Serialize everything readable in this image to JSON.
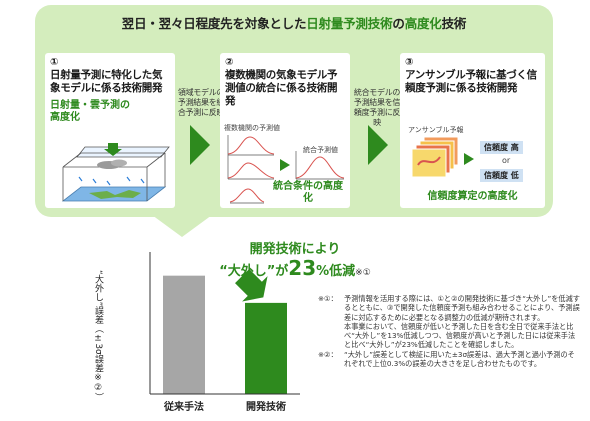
{
  "title": {
    "part1": "翌日・翌々日程度先を対象とした",
    "part2": "日射量予測技術",
    "part3": "の",
    "part4": "高度化",
    "part5": "技術"
  },
  "step1": {
    "num": "①",
    "heading": "日射量予測に特化した気象モデルに係る技術開発",
    "highlight": "日射量・雲予測の高度化"
  },
  "link1": "領域モデルの予測結果を統合予測に反映",
  "step2": {
    "num": "②",
    "heading": "複数機関の気象モデル予測値の統合に係る技術開発",
    "small1": "複数機関の予測値",
    "small2": "統合予測値",
    "highlight": "統合条件の高度化"
  },
  "link2": "統合モデルの予測結果を信頼度予測に反映",
  "step3": {
    "num": "③",
    "heading": "アンサンブル予報に基づく信頼度予測に係る技術開発",
    "small1": "アンサンブル予報",
    "conf_high": "信頼度 高",
    "or": "or",
    "conf_low": "信頼度 低",
    "highlight": "信頼度算定の高度化"
  },
  "result": {
    "line1": "開発技術により",
    "line2_a": "“大外し”が",
    "line2_b": "23",
    "line2_c": "%低減",
    "line2_note": "※①"
  },
  "chart_data": {
    "type": "bar",
    "categories": [
      "従来手法",
      "開発技術"
    ],
    "values": [
      100,
      77
    ],
    "ylabel": "“大外し”誤差（±3σ誤差※②）",
    "colors": [
      "#a6a6a6",
      "#2e8a1e"
    ],
    "ylim": [
      0,
      120
    ]
  },
  "notes": [
    {
      "key": "※①：",
      "text": "予測情報を活用する際には、①と②の開発技術に基づき“大外し”を低減するとともに、③で開発した信頼度予測も組み合わせることにより、予測誤差に対応するために必要となる調整力の低減が期待されます。"
    },
    {
      "key": "",
      "text": "本事業において、信頼度が低いと予測した日を含む全日で従来手法と比べ“大外し”を13%低減しつつ、信頼度が高いと予測した日には従来手法と比べ“大外し”が23%低減したことを確認しました。"
    },
    {
      "key": "※②：",
      "text": "“大外し”誤差として検証に用いた±3σ誤差は、過大予測と過小予測のそれぞれで上位0.3%の誤差の大きさを足し合わせたものです。"
    }
  ]
}
